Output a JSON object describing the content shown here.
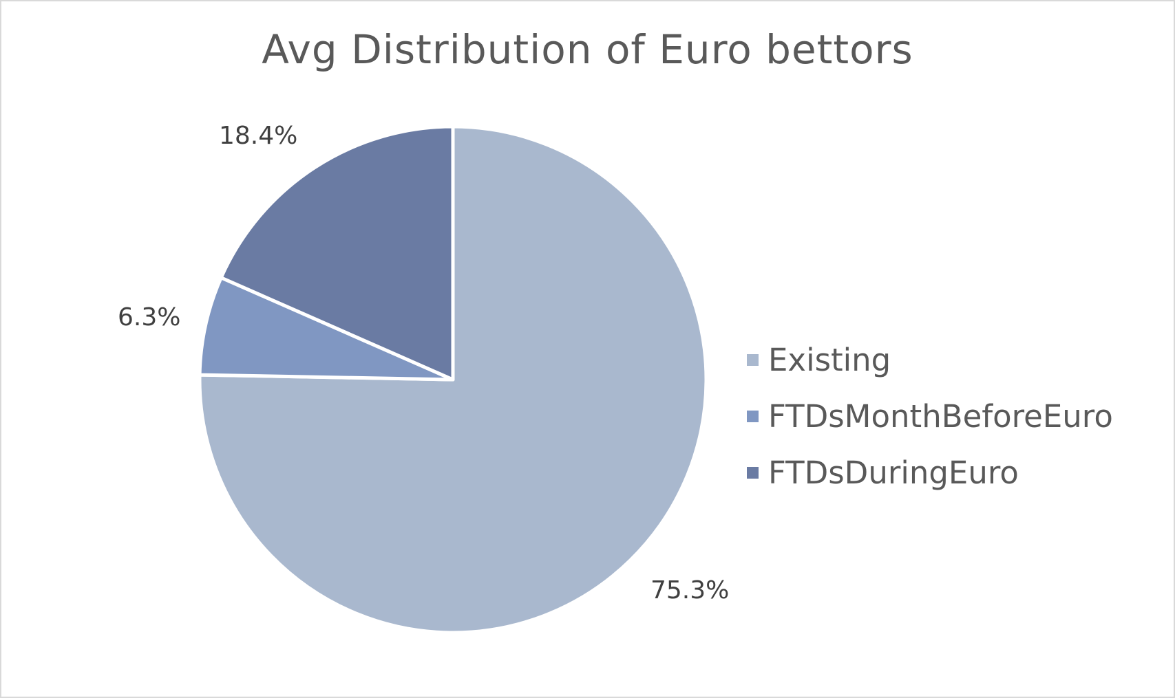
{
  "chart_data": {
    "type": "pie",
    "title": "Avg Distribution of Euro bettors",
    "legend_position": "right",
    "slices": [
      {
        "name": "Existing",
        "value": 75.3,
        "label": "75.3%",
        "color": "#a9b8ce"
      },
      {
        "name": "FTDsMonthBeforeEuro",
        "value": 6.3,
        "label": "6.3%",
        "color": "#8097c2"
      },
      {
        "name": "FTDsDuringEuro",
        "value": 18.4,
        "label": "18.4%",
        "color": "#6a7ba3"
      }
    ]
  }
}
